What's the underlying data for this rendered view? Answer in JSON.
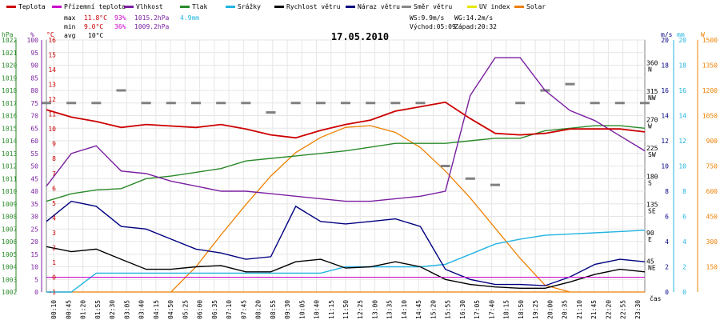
{
  "chart_data": {
    "type": "line",
    "title": "17.05.2010",
    "xlabel": "čas",
    "legend": [
      {
        "name": "Teplota",
        "color": "#cc0000"
      },
      {
        "name": "Přízemní teplota",
        "color": "#cc00cc"
      },
      {
        "name": "Vlhkost",
        "color": "#7a1fa0"
      },
      {
        "name": "Tlak",
        "color": "#2a8a2a"
      },
      {
        "name": "Srážky",
        "color": "#22b4e0"
      },
      {
        "name": "Rychlost větru",
        "color": "#000000"
      },
      {
        "name": "Náraz větru",
        "color": "#000080"
      },
      {
        "name": "Směr větru",
        "color": "#888888"
      },
      {
        "name": "UV index",
        "color": "#e6e600"
      },
      {
        "name": "Solar",
        "color": "#ee8000"
      }
    ],
    "stats": {
      "max": {
        "label": "max",
        "temp": "11.8°C",
        "hum": "93%",
        "press": "1015.2hPa",
        "rain": "4.9mm"
      },
      "min": {
        "label": "min",
        "temp": "9.0°C",
        "hum": "36%",
        "press": "1009.2hPa"
      },
      "avg": {
        "label": "avg",
        "temp": "10°C"
      }
    },
    "wind_info": {
      "ws": "WS:9.9m/s",
      "wg": "WG:14.2m/s"
    },
    "sun": {
      "sunrise": "Východ:05:09",
      "sunset": "Západ:20:32"
    },
    "x_ticks": [
      "00:00",
      "00:35",
      "01:10",
      "01:45",
      "02:20",
      "02:55",
      "03:30",
      "04:05",
      "04:40",
      "05:15",
      "05:50",
      "06:25",
      "07:00",
      "07:35",
      "08:10",
      "08:45",
      "09:20",
      "09:55",
      "10:30",
      "11:05",
      "11:40",
      "12:15",
      "12:50",
      "13:25",
      "14:00",
      "14:35",
      "15:10",
      "15:45",
      "16:20",
      "16:55",
      "17:30",
      "18:05",
      "18:40",
      "19:15",
      "19:50",
      "20:25",
      "21:00",
      "21:35",
      "22:10",
      "22:45",
      "23:20"
    ],
    "x_tick_labels": [
      "00:10",
      "00:45",
      "01:20",
      "01:55",
      "02:30",
      "03:05",
      "03:40",
      "04:15",
      "04:50",
      "05:25",
      "06:00",
      "06:35",
      "07:10",
      "07:45",
      "08:20",
      "08:55",
      "09:30",
      "10:05",
      "10:40",
      "11:15",
      "11:50",
      "12:25",
      "13:00",
      "13:35",
      "14:10",
      "14:45",
      "15:20",
      "15:55",
      "16:30",
      "17:05",
      "17:40",
      "18:15",
      "18:50",
      "19:25",
      "20:00",
      "20:35",
      "21:10",
      "21:45",
      "22:20",
      "22:55",
      "23:30"
    ],
    "axes": {
      "pressure": {
        "unit": "hPa",
        "ylim": [
          1002,
          1022
        ],
        "ticks": [
          "1022",
          "1021",
          "1020",
          "1019",
          "1018",
          "1017",
          "1016",
          "1015",
          "1014",
          "1013",
          "1012",
          "1011",
          "1010",
          "1009",
          "1008",
          "1007",
          "1006",
          "1005",
          "1004",
          "1003",
          "1002"
        ]
      },
      "humidity": {
        "unit": "%",
        "ylim": [
          0,
          100
        ],
        "ticks": [
          "100",
          "95",
          "90",
          "85",
          "80",
          "75",
          "70",
          "65",
          "60",
          "55",
          "50",
          "45",
          "40",
          "35",
          "30",
          "25",
          "20",
          "15",
          "10",
          "5",
          "0"
        ]
      },
      "temperature": {
        "unit": "°C",
        "ylim": [
          -1,
          16
        ],
        "ticks": [
          "16",
          "15",
          "14",
          "13",
          "12",
          "11",
          "10",
          "9",
          "8",
          "7",
          "6",
          "5",
          "4",
          "3",
          "2",
          "1",
          "0",
          "-1"
        ]
      },
      "wind_speed": {
        "unit": "m/s",
        "ylim": [
          0,
          20
        ],
        "ticks": [
          "20",
          "18",
          "16",
          "14",
          "12",
          "10",
          "8",
          "6",
          "4",
          "2",
          "0"
        ]
      },
      "direction": {
        "ticks": [
          "360",
          "315",
          "270",
          "225",
          "180",
          "135",
          "90",
          "45"
        ],
        "labels": [
          "N",
          "NW",
          "W",
          "SW",
          "S",
          "SE",
          "E",
          "NE"
        ]
      },
      "rain": {
        "unit": "mm",
        "ylim": [
          0,
          20
        ],
        "ticks": [
          "20",
          "18",
          "16",
          "14",
          "12",
          "10",
          "8",
          "6",
          "4",
          "2",
          "0"
        ]
      },
      "solar": {
        "unit": "W",
        "ylim": [
          0,
          1500
        ],
        "ticks": [
          "1500",
          "1350",
          "1200",
          "1050",
          "900",
          "750",
          "600",
          "450",
          "300",
          "150"
        ]
      }
    },
    "series_ref_hours": [
      0,
      1,
      2,
      3,
      4,
      5,
      6,
      7,
      8,
      9,
      10,
      11,
      12,
      13,
      14,
      15,
      16,
      17,
      18,
      19,
      20,
      21,
      22,
      23,
      24
    ],
    "series": {
      "temperature": [
        11.3,
        10.8,
        10.5,
        10.1,
        10.3,
        10.2,
        10.1,
        10.3,
        10.0,
        9.6,
        9.4,
        9.9,
        10.3,
        10.6,
        11.2,
        11.5,
        11.8,
        10.7,
        9.7,
        9.6,
        9.7,
        10.0,
        10.0,
        10.0,
        9.8
      ],
      "humidity": [
        42,
        55,
        58,
        48,
        47,
        44,
        42,
        40,
        40,
        39,
        38,
        37,
        36,
        36,
        37,
        38,
        40,
        78,
        93,
        93,
        80,
        72,
        68,
        62,
        56
      ],
      "pressure": [
        1009.2,
        1009.8,
        1010.1,
        1010.2,
        1011.0,
        1011.2,
        1011.5,
        1011.8,
        1012.4,
        1012.6,
        1012.8,
        1013.0,
        1013.2,
        1013.5,
        1013.8,
        1013.8,
        1013.8,
        1014.0,
        1014.2,
        1014.2,
        1014.8,
        1015.0,
        1015.2,
        1015.2,
        1015.0
      ],
      "rain_cumulative": [
        0,
        0,
        1.5,
        1.5,
        1.5,
        1.5,
        1.5,
        1.5,
        1.5,
        1.5,
        1.5,
        1.5,
        2.0,
        2.0,
        2.0,
        2.0,
        2.2,
        3.0,
        3.8,
        4.2,
        4.5,
        4.6,
        4.7,
        4.8,
        4.9
      ],
      "wind_speed": [
        3.6,
        3.2,
        3.4,
        2.6,
        1.8,
        1.8,
        2.0,
        2.1,
        1.6,
        1.6,
        2.4,
        2.6,
        1.9,
        2.0,
        2.4,
        2.0,
        1.0,
        0.6,
        0.4,
        0.3,
        0.3,
        0.8,
        1.4,
        1.8,
        1.6
      ],
      "wind_gust": [
        5.6,
        7.2,
        6.8,
        5.2,
        5.0,
        4.2,
        3.4,
        3.1,
        2.6,
        2.8,
        6.8,
        5.6,
        5.4,
        5.6,
        5.8,
        5.2,
        1.8,
        1.0,
        0.6,
        0.6,
        0.5,
        1.2,
        2.2,
        2.6,
        2.4
      ],
      "wind_direction": [
        300,
        300,
        300,
        320,
        300,
        300,
        300,
        300,
        300,
        285,
        300,
        300,
        300,
        300,
        300,
        300,
        200,
        180,
        170,
        300,
        320,
        330,
        300,
        300,
        300
      ],
      "solar": [
        0,
        0,
        0,
        0,
        0,
        0,
        150,
        340,
        520,
        690,
        830,
        920,
        980,
        990,
        950,
        860,
        720,
        560,
        380,
        200,
        40,
        0,
        0,
        0,
        0
      ]
    }
  }
}
